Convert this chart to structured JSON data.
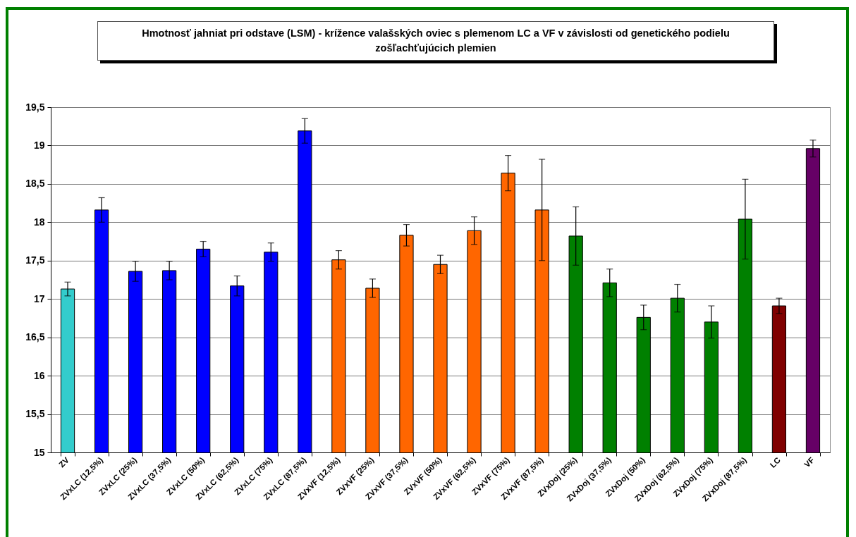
{
  "chart_data": {
    "type": "bar",
    "title": "Hmotnosť jahniat pri odstave (LSM) - krížence valašských oviec s plemenom LC a VF v závislosti od genetického podielu zošľachťujúcich plemien",
    "categories": [
      "ZV",
      "ZVxLC (12,5%)",
      "ZVxLC (25%)",
      "ZVxLC (37,5%)",
      "ZVxLC (50%)",
      "ZVxLC (62,5%)",
      "ZVxLC (75%)",
      "ZVxLC (87,5%)",
      "ZVxVF (12,5%)",
      "ZVxVF (25%)",
      "ZVxVF (37,5%)",
      "ZVxVF (50%)",
      "ZVxVF (62,5%)",
      "ZVxVF (75%)",
      "ZVxVF (87,5%)",
      "ZVxDoj (25%)",
      "ZVxDoj (37,5%)",
      "ZVxDoj (50%)",
      "ZVxDoj (62,5%)",
      "ZVxDoj (75%)",
      "ZVxDoj (87,5%)",
      "LC",
      "VF"
    ],
    "values": [
      17.13,
      18.16,
      17.36,
      17.37,
      17.65,
      17.17,
      17.61,
      19.19,
      17.51,
      17.14,
      17.83,
      17.45,
      17.89,
      18.64,
      18.16,
      17.82,
      17.21,
      16.76,
      17.01,
      16.7,
      18.04,
      16.91,
      18.96
    ],
    "errors": [
      0.09,
      0.16,
      0.13,
      0.12,
      0.1,
      0.13,
      0.12,
      0.16,
      0.12,
      0.12,
      0.14,
      0.12,
      0.18,
      0.23,
      0.66,
      0.38,
      0.18,
      0.16,
      0.18,
      0.21,
      0.52,
      0.1,
      0.11
    ],
    "colors": [
      "#33cccc",
      "#0000ff",
      "#0000ff",
      "#0000ff",
      "#0000ff",
      "#0000ff",
      "#0000ff",
      "#0000ff",
      "#ff6600",
      "#ff6600",
      "#ff6600",
      "#ff6600",
      "#ff6600",
      "#ff6600",
      "#ff6600",
      "#008000",
      "#008000",
      "#008000",
      "#008000",
      "#008000",
      "#008000",
      "#800000",
      "#660066"
    ],
    "ylim": [
      15,
      19.5
    ],
    "yticks": [
      15,
      {
        "value": 15.5,
        "label": "15,5"
      },
      16,
      {
        "value": 16.5,
        "label": "16,5"
      },
      17,
      {
        "value": 17.5,
        "label": "17,5"
      },
      18,
      {
        "value": 18.5,
        "label": "18,5"
      },
      19,
      {
        "value": 19.5,
        "label": "19,5"
      }
    ],
    "grid": "y"
  }
}
